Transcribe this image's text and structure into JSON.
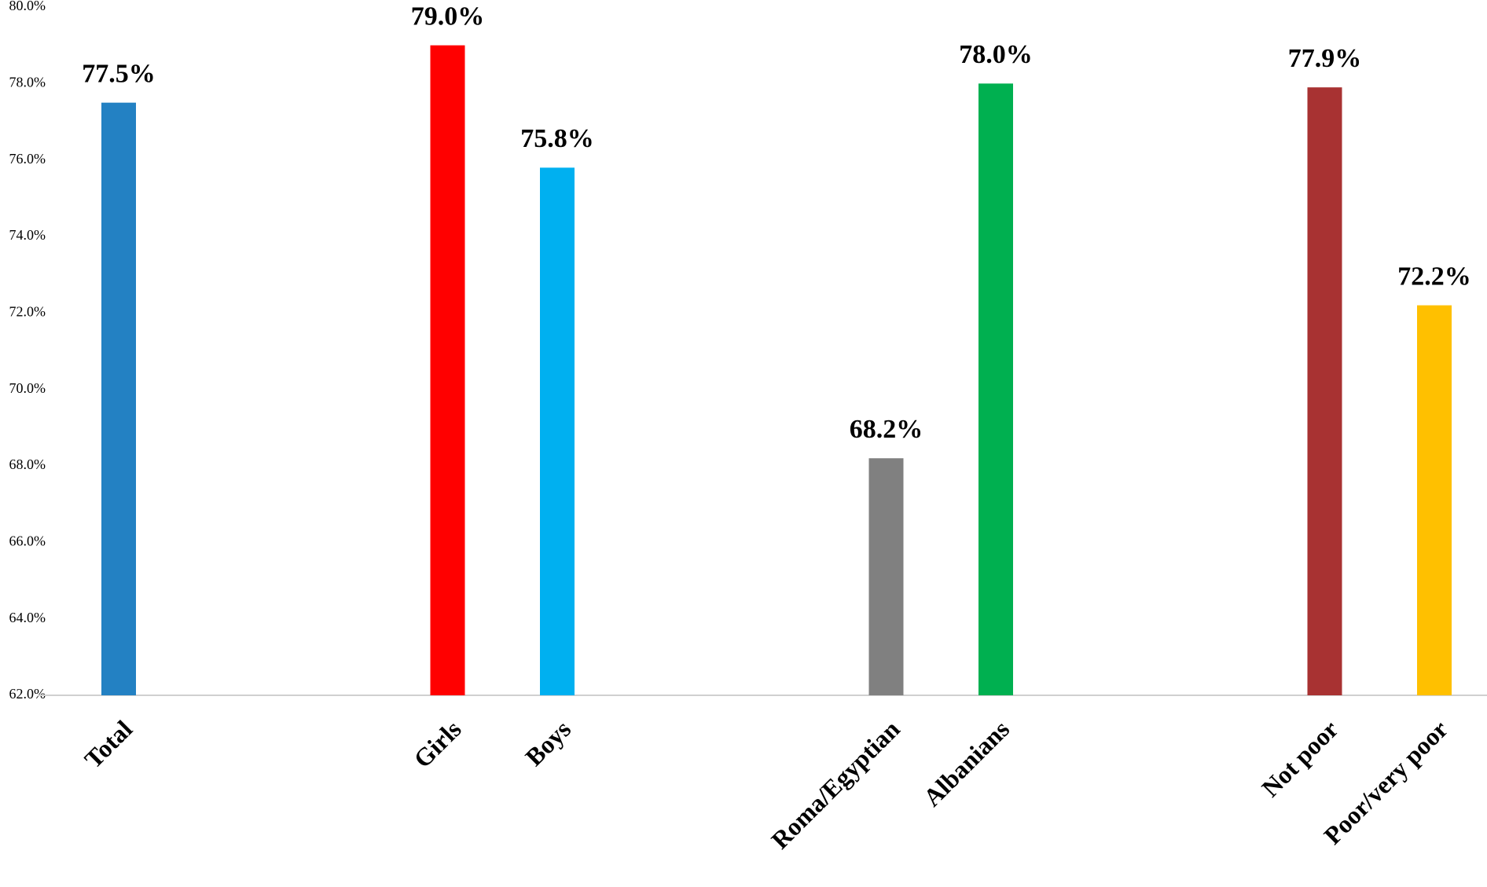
{
  "chart_data": {
    "type": "bar",
    "categories": [
      "Total",
      null,
      null,
      "Girls",
      "Boys",
      null,
      null,
      "Roma/Egyptian",
      "Albanians",
      null,
      null,
      "Not poor",
      "Poor/very poor"
    ],
    "values": [
      77.5,
      null,
      null,
      79.0,
      75.8,
      null,
      null,
      68.2,
      78.0,
      null,
      null,
      77.9,
      72.2
    ],
    "value_labels": [
      "77.5%",
      null,
      null,
      "79.0%",
      "75.8%",
      null,
      null,
      "68.2%",
      "78.0%",
      null,
      null,
      "77.9%",
      "72.2%"
    ],
    "colors": [
      "#2381c3",
      null,
      null,
      "#ff0000",
      "#00b0f0",
      null,
      null,
      "#808080",
      "#00b050",
      null,
      null,
      "#a83232",
      "#ffc000"
    ],
    "ylim": [
      62,
      80
    ],
    "yticks": [
      {
        "value": 62,
        "label": "62.0%"
      },
      {
        "value": 64,
        "label": "64.0%"
      },
      {
        "value": 66,
        "label": "66.0%"
      },
      {
        "value": 68,
        "label": "68.0%"
      },
      {
        "value": 70,
        "label": "70.0%"
      },
      {
        "value": 72,
        "label": "72.0%"
      },
      {
        "value": 74,
        "label": "74.0%"
      },
      {
        "value": 76,
        "label": "76.0%"
      },
      {
        "value": 78,
        "label": "78.0%"
      },
      {
        "value": 80,
        "label": "80.0%"
      }
    ]
  }
}
